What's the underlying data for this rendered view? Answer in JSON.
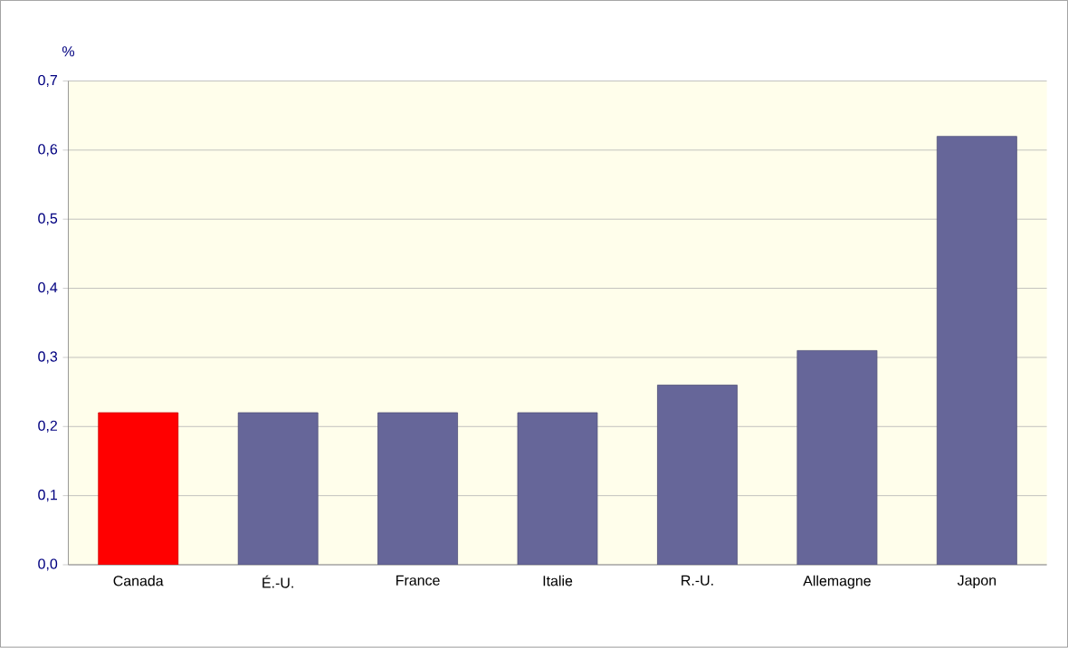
{
  "chart_data": {
    "type": "bar",
    "ylabel": "%",
    "categories": [
      "Canada",
      "É.-U.",
      "France",
      "Italie",
      "R.-U.",
      "Allemagne",
      "Japon"
    ],
    "values": [
      0.22,
      0.22,
      0.22,
      0.22,
      0.26,
      0.31,
      0.62
    ],
    "colors": [
      "#ff0000",
      "#666699",
      "#666699",
      "#666699",
      "#666699",
      "#666699",
      "#666699"
    ],
    "ylim": [
      0,
      0.7
    ],
    "yticks": [
      {
        "value": 0,
        "label": "0,0"
      },
      {
        "value": 0.1,
        "label": "0,1"
      },
      {
        "value": 0.2,
        "label": "0,2"
      },
      {
        "value": 0.3,
        "label": "0,3"
      },
      {
        "value": 0.4,
        "label": "0,4"
      },
      {
        "value": 0.5,
        "label": "0,5"
      },
      {
        "value": 0.6,
        "label": "0,6"
      },
      {
        "value": 0.7,
        "label": "0,7"
      }
    ],
    "grid": "y"
  }
}
